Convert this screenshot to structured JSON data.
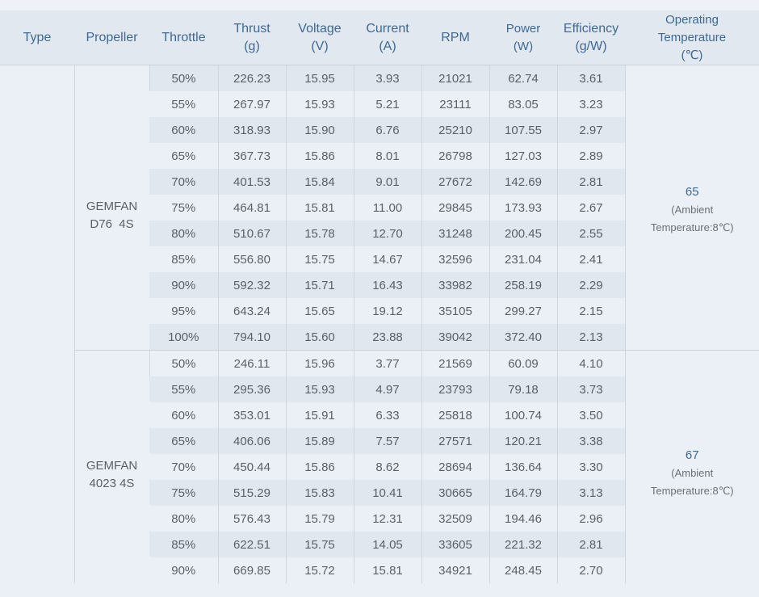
{
  "header": {
    "type": "Type",
    "propeller": "Propeller",
    "throttle": "Throttle",
    "thrust": {
      "label": "Thrust",
      "unit": "(g)"
    },
    "voltage": {
      "label": "Voltage",
      "unit": "(V)"
    },
    "current": {
      "label": "Current",
      "unit": "(A)"
    },
    "rpm": "RPM",
    "power": {
      "label": "Power",
      "unit": "(W)"
    },
    "efficiency": {
      "label": "Efficiency",
      "unit": "(g/W)"
    },
    "temperature": {
      "line1": "Operating",
      "line2": "Temperature",
      "unit": "(℃)"
    }
  },
  "groups": [
    {
      "type": "",
      "propeller": {
        "line1": "GEMFAN",
        "line2": "D76  4S"
      },
      "temperature": {
        "value": "65",
        "note1": "(Ambient",
        "note2": "Temperature:8℃)"
      },
      "rows": [
        {
          "throttle": "50%",
          "thrust": "226.23",
          "voltage": "15.95",
          "current": "3.93",
          "rpm": "21021",
          "power": "62.74",
          "efficiency": "3.61"
        },
        {
          "throttle": "55%",
          "thrust": "267.97",
          "voltage": "15.93",
          "current": "5.21",
          "rpm": "23111",
          "power": "83.05",
          "efficiency": "3.23"
        },
        {
          "throttle": "60%",
          "thrust": "318.93",
          "voltage": "15.90",
          "current": "6.76",
          "rpm": "25210",
          "power": "107.55",
          "efficiency": "2.97"
        },
        {
          "throttle": "65%",
          "thrust": "367.73",
          "voltage": "15.86",
          "current": "8.01",
          "rpm": "26798",
          "power": "127.03",
          "efficiency": "2.89"
        },
        {
          "throttle": "70%",
          "thrust": "401.53",
          "voltage": "15.84",
          "current": "9.01",
          "rpm": "27672",
          "power": "142.69",
          "efficiency": "2.81"
        },
        {
          "throttle": "75%",
          "thrust": "464.81",
          "voltage": "15.81",
          "current": "11.00",
          "rpm": "29845",
          "power": "173.93",
          "efficiency": "2.67"
        },
        {
          "throttle": "80%",
          "thrust": "510.67",
          "voltage": "15.78",
          "current": "12.70",
          "rpm": "31248",
          "power": "200.45",
          "efficiency": "2.55"
        },
        {
          "throttle": "85%",
          "thrust": "556.80",
          "voltage": "15.75",
          "current": "14.67",
          "rpm": "32596",
          "power": "231.04",
          "efficiency": "2.41"
        },
        {
          "throttle": "90%",
          "thrust": "592.32",
          "voltage": "15.71",
          "current": "16.43",
          "rpm": "33982",
          "power": "258.19",
          "efficiency": "2.29"
        },
        {
          "throttle": "95%",
          "thrust": "643.24",
          "voltage": "15.65",
          "current": "19.12",
          "rpm": "35105",
          "power": "299.27",
          "efficiency": "2.15"
        },
        {
          "throttle": "100%",
          "thrust": "794.10",
          "voltage": "15.60",
          "current": "23.88",
          "rpm": "39042",
          "power": "372.40",
          "efficiency": "2.13"
        }
      ]
    },
    {
      "type": "",
      "propeller": {
        "line1": "GEMFAN",
        "line2": "4023 4S"
      },
      "temperature": {
        "value": "67",
        "note1": "(Ambient",
        "note2": "Temperature:8℃)"
      },
      "rows": [
        {
          "throttle": "50%",
          "thrust": "246.11",
          "voltage": "15.96",
          "current": "3.77",
          "rpm": "21569",
          "power": "60.09",
          "efficiency": "4.10"
        },
        {
          "throttle": "55%",
          "thrust": "295.36",
          "voltage": "15.93",
          "current": "4.97",
          "rpm": "23793",
          "power": "79.18",
          "efficiency": "3.73"
        },
        {
          "throttle": "60%",
          "thrust": "353.01",
          "voltage": "15.91",
          "current": "6.33",
          "rpm": "25818",
          "power": "100.74",
          "efficiency": "3.50"
        },
        {
          "throttle": "65%",
          "thrust": "406.06",
          "voltage": "15.89",
          "current": "7.57",
          "rpm": "27571",
          "power": "120.21",
          "efficiency": "3.38"
        },
        {
          "throttle": "70%",
          "thrust": "450.44",
          "voltage": "15.86",
          "current": "8.62",
          "rpm": "28694",
          "power": "136.64",
          "efficiency": "3.30"
        },
        {
          "throttle": "75%",
          "thrust": "515.29",
          "voltage": "15.83",
          "current": "10.41",
          "rpm": "30665",
          "power": "164.79",
          "efficiency": "3.13"
        },
        {
          "throttle": "80%",
          "thrust": "576.43",
          "voltage": "15.79",
          "current": "12.31",
          "rpm": "32509",
          "power": "194.46",
          "efficiency": "2.96"
        },
        {
          "throttle": "85%",
          "thrust": "622.51",
          "voltage": "15.75",
          "current": "14.05",
          "rpm": "33605",
          "power": "221.32",
          "efficiency": "2.81"
        },
        {
          "throttle": "90%",
          "thrust": "669.85",
          "voltage": "15.72",
          "current": "15.81",
          "rpm": "34921",
          "power": "248.45",
          "efficiency": "2.70"
        }
      ]
    }
  ],
  "colors": {
    "header_bg": "#e1e8f0",
    "header_text": "#3d6994",
    "row_dark": "#e1e7ef",
    "row_light": "#ebf0f7",
    "cell_text": "#5b5f66",
    "border": "#cfd6df"
  }
}
